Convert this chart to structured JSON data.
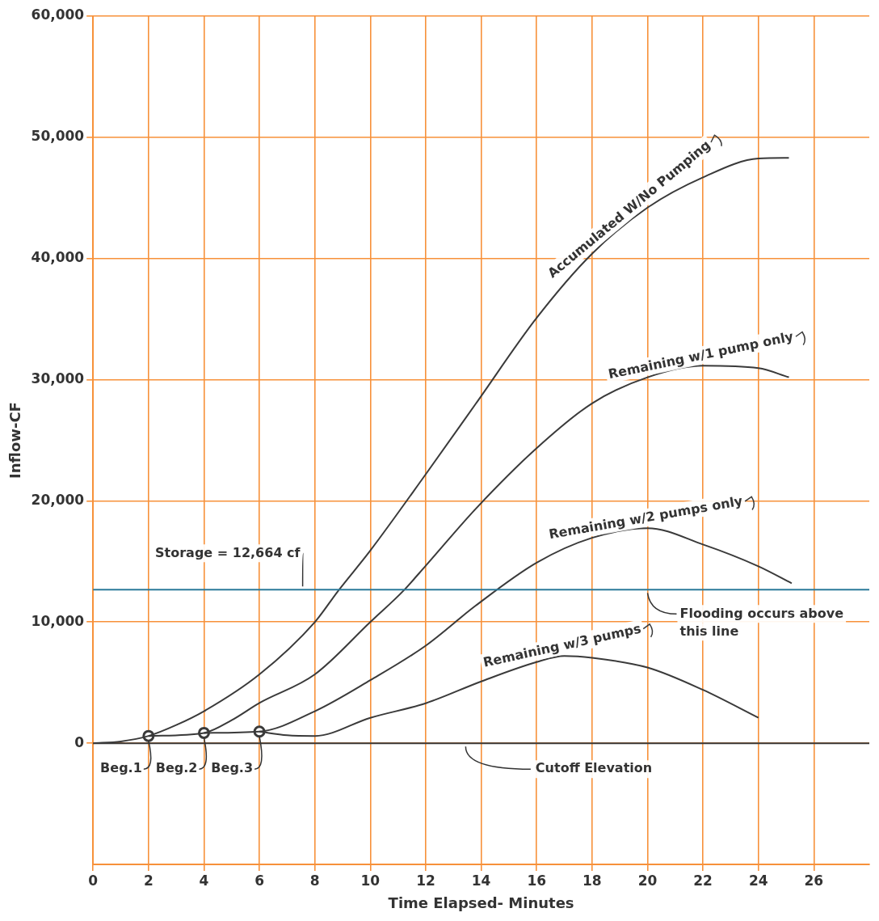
{
  "chart_data": {
    "type": "line",
    "xlabel": "Time Elapsed- Minutes",
    "ylabel": "Inflow-CF",
    "xlim": [
      0,
      28
    ],
    "xticks": [
      0,
      2,
      4,
      6,
      8,
      10,
      12,
      14,
      16,
      18,
      20,
      22,
      24,
      26
    ],
    "ylim": [
      -10000,
      60000
    ],
    "yticks": [
      {
        "value": 0,
        "label": "0"
      },
      {
        "value": 10000,
        "label": "10,000"
      },
      {
        "value": 20000,
        "label": "20,000"
      },
      {
        "value": 30000,
        "label": "30,000"
      },
      {
        "value": 40000,
        "label": "40,000"
      },
      {
        "value": 50000,
        "label": "50,000"
      },
      {
        "value": 60000,
        "label": "60,000"
      }
    ],
    "grid": true,
    "legend": false,
    "marker": "none",
    "line_style": "solid",
    "series": [
      {
        "name": "Accumulated W/No Pumping",
        "color": "#3a3a3a",
        "x": [
          0,
          1,
          2,
          3,
          4,
          6,
          8,
          8.85,
          10,
          12,
          13.8,
          16,
          18,
          20,
          22,
          24,
          25.1
        ],
        "values": [
          0,
          150,
          600,
          1500,
          2640,
          5680,
          10000,
          12600,
          15900,
          22200,
          28000,
          35100,
          40400,
          44200,
          46700,
          48250,
          48300
        ]
      },
      {
        "name": "Remaining w/1 pump only",
        "color": "#3a3a3a",
        "x": [
          2,
          4,
          5,
          6,
          8,
          10,
          11.2,
          12,
          13.8,
          16,
          18,
          20,
          22,
          24,
          25.1
        ],
        "values": [
          600,
          850,
          1900,
          3320,
          5680,
          10000,
          12600,
          14650,
          19340,
          24350,
          28050,
          30200,
          31150,
          30950,
          30200
        ]
      },
      {
        "name": "Remaining w/2 pumps only",
        "color": "#3a3a3a",
        "x": [
          4,
          6,
          8,
          10,
          12,
          13.8,
          16,
          18,
          20,
          22,
          24,
          25.2
        ],
        "values": [
          850,
          960,
          2640,
          5200,
          8050,
          11350,
          14900,
          16950,
          17750,
          16400,
          14600,
          13200
        ]
      },
      {
        "name": "Remaining w/3 pumps",
        "color": "#3a3a3a",
        "x": [
          6,
          7,
          8,
          10,
          12,
          14,
          16,
          17,
          18,
          20,
          22,
          24
        ],
        "values": [
          960,
          660,
          600,
          2100,
          3300,
          5100,
          6700,
          7200,
          7050,
          6250,
          4400,
          2100
        ]
      },
      {
        "type": "scatter",
        "marker": "circle",
        "color": "#3a3a3a",
        "x": [
          2,
          4,
          6
        ],
        "values": [
          600,
          850,
          960
        ]
      }
    ],
    "ref_lines": [
      {
        "axis": "y",
        "value": 12664,
        "label": "Storage = 12,664 cf",
        "color": "#2b7a9a"
      },
      {
        "axis": "y",
        "value": 0,
        "label": "Cutoff Elevation",
        "color": "#3a3a3a"
      }
    ],
    "annotations": [
      {
        "text": "Flooding occurs above this line",
        "x": 20,
        "y": 12664
      },
      {
        "text": "Beg.1",
        "x": 2,
        "y": 600
      },
      {
        "text": "Beg.2",
        "x": 4,
        "y": 850
      },
      {
        "text": "Beg.3",
        "x": 6,
        "y": 960
      }
    ]
  }
}
